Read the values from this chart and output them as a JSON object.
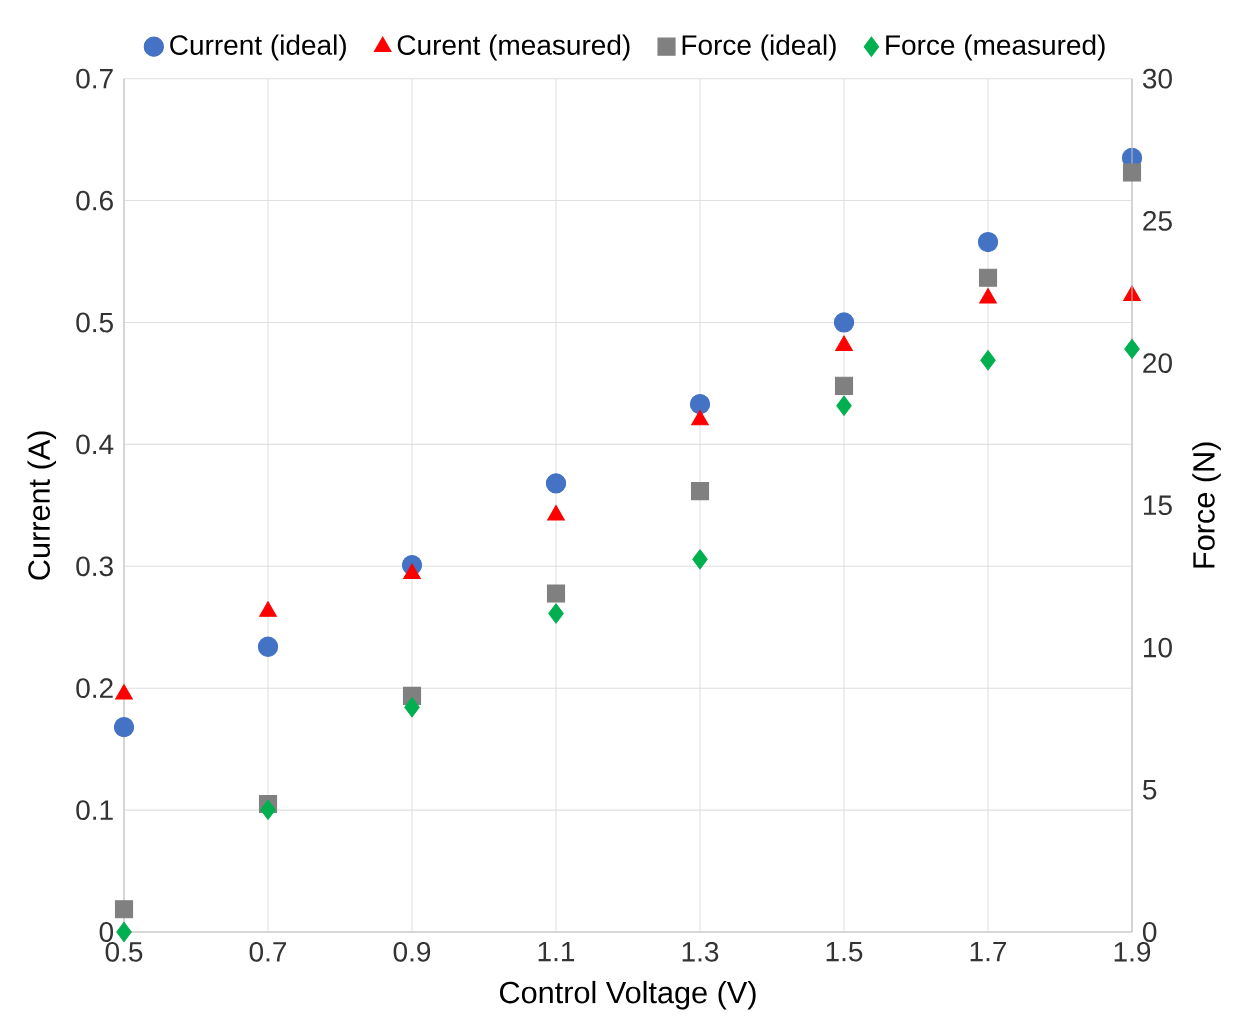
{
  "chart_data": {
    "type": "scatter",
    "xlabel": "Control Voltage (V)",
    "ylabel": "Current (A)",
    "y2label": "Force (N)",
    "xlim": [
      0.5,
      1.9
    ],
    "xticks": [
      0.5,
      0.7,
      0.9,
      1.1,
      1.3,
      1.5,
      1.7,
      1.9
    ],
    "ylim": [
      0,
      0.7
    ],
    "yticks": [
      0,
      0.1,
      0.2,
      0.3,
      0.4,
      0.5,
      0.6,
      0.7
    ],
    "y2lim": [
      0,
      30
    ],
    "y2ticks": [
      0,
      5,
      10,
      15,
      20,
      25,
      30
    ],
    "grid": true,
    "legend": "top",
    "x": [
      0.5,
      0.7,
      0.9,
      1.1,
      1.3,
      1.5,
      1.7,
      1.9
    ],
    "series": [
      {
        "name": "Current (ideal)",
        "color": "#4472c4",
        "marker": "circle",
        "values": [
          0.168,
          0.234,
          0.301,
          0.368,
          0.433,
          0.5,
          0.566,
          0.635
        ]
      },
      {
        "name": "Curent (measured)",
        "color": "#ff0000",
        "marker": "triangle",
        "values": [
          0.195,
          0.263,
          0.294,
          0.342,
          0.42,
          0.481,
          0.52,
          0.522
        ]
      },
      {
        "name": "Force (ideal)",
        "color": "#808080",
        "marker": "square",
        "axis": "y2",
        "values": [
          0.8,
          4.5,
          8.3,
          11.9,
          15.5,
          19.2,
          23.0,
          26.7
        ]
      },
      {
        "name": "Force (measured)",
        "color": "#00b050",
        "marker": "diamond",
        "axis": "y2",
        "values": [
          0,
          4.3,
          7.9,
          11.2,
          13.1,
          18.5,
          20.1,
          20.5
        ]
      }
    ]
  }
}
